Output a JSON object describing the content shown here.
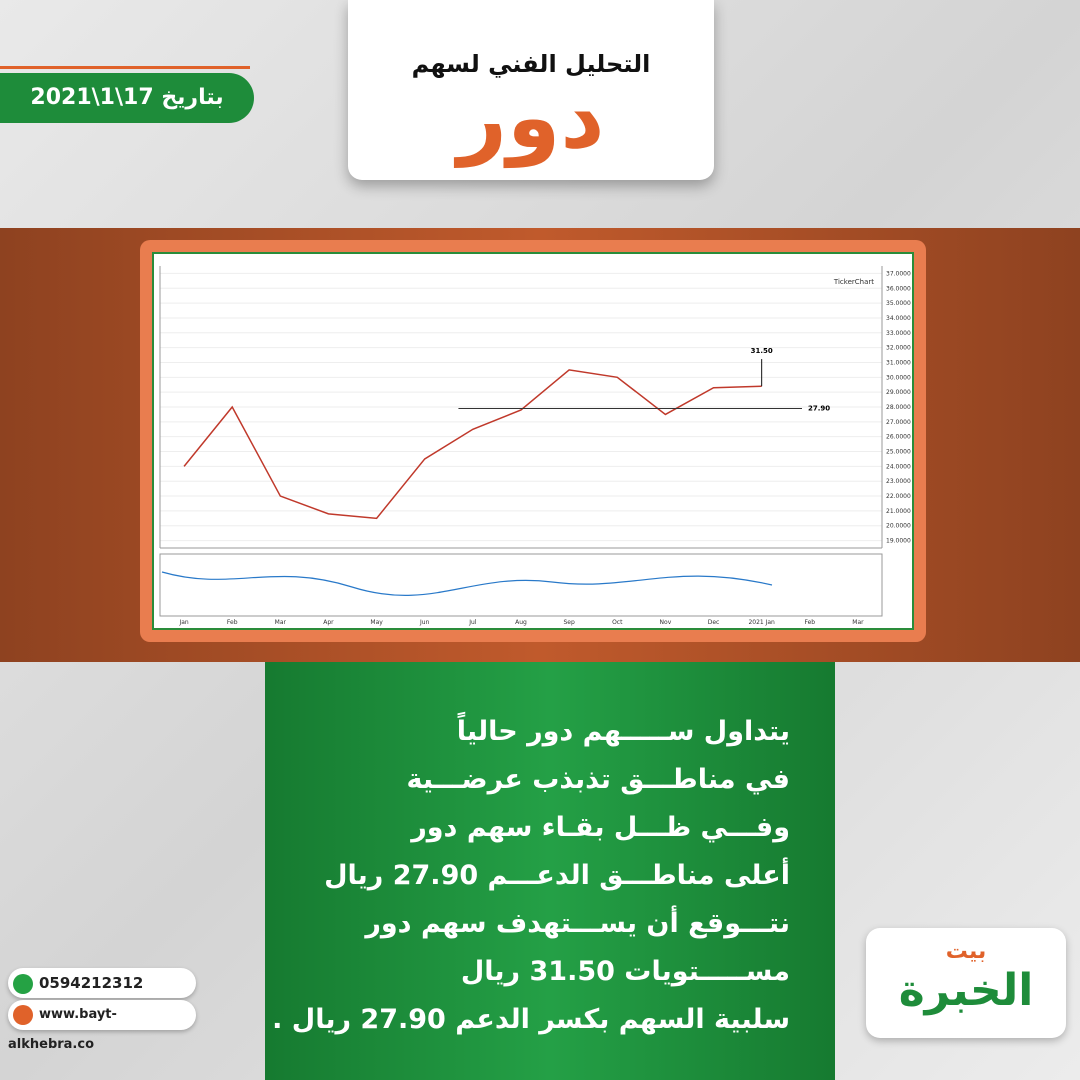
{
  "header": {
    "subtitle": "التحليل الفني لسهم",
    "title": "دور",
    "date": "بتاريخ 17\\1\\2021"
  },
  "chart_data": {
    "type": "line",
    "brand": "TickerChart",
    "categories": [
      "Jan",
      "Feb",
      "Mar",
      "Apr",
      "May",
      "Jun",
      "Jul",
      "Aug",
      "Sep",
      "Oct",
      "Nov",
      "Dec",
      "2021 Jan",
      "Feb",
      "Mar"
    ],
    "series": [
      {
        "name": "دور",
        "color": "#c0392b",
        "values": [
          24,
          28,
          22,
          20.8,
          20.5,
          24.5,
          26.5,
          27.8,
          30.5,
          30,
          27.5,
          29.3,
          29.4,
          null,
          null
        ]
      }
    ],
    "ylim": [
      18.5,
      37.5
    ],
    "yticks": [
      {
        "value": 19,
        "label": "19.0000"
      },
      {
        "value": 20,
        "label": "20.0000"
      },
      {
        "value": 21,
        "label": "21.0000"
      },
      {
        "value": 22,
        "label": "22.0000"
      },
      {
        "value": 23,
        "label": "23.0000"
      },
      {
        "value": 24,
        "label": "24.0000"
      },
      {
        "value": 25,
        "label": "25.0000"
      },
      {
        "value": 26,
        "label": "26.0000"
      },
      {
        "value": 27,
        "label": "27.0000"
      },
      {
        "value": 28,
        "label": "28.0000"
      },
      {
        "value": 29,
        "label": "29.0000"
      },
      {
        "value": 30,
        "label": "30.0000"
      },
      {
        "value": 31,
        "label": "31.0000"
      },
      {
        "value": 32,
        "label": "32.0000"
      },
      {
        "value": 33,
        "label": "33.0000"
      },
      {
        "value": 34,
        "label": "34.0000"
      },
      {
        "value": 35,
        "label": "35.0000"
      },
      {
        "value": 36,
        "label": "36.0000"
      },
      {
        "value": 37,
        "label": "37.0000"
      }
    ],
    "support": {
      "value": 27.9,
      "label": "27.90"
    },
    "target": {
      "value": 31.5,
      "label": "31.50"
    }
  },
  "body": [
    "يتداول ســـــهم دور حالياً",
    "في مناطـــق تذبذب عرضـــية",
    "وفـــي ظـــل بقـاء سهم دور",
    "أعلى مناطـــق الدعـــم 27.90 ريال",
    "نتـــوقع أن يســـتهدف سهم دور",
    "مســـــتويات 31.50 ريال",
    "سلبية السهم بكسر الدعم 27.90 ريال ."
  ],
  "contact": {
    "phone": "0594212312",
    "website": "www.bayt-alkhebra.co"
  },
  "logo": {
    "top": "بيت",
    "main": "الخبرة"
  }
}
